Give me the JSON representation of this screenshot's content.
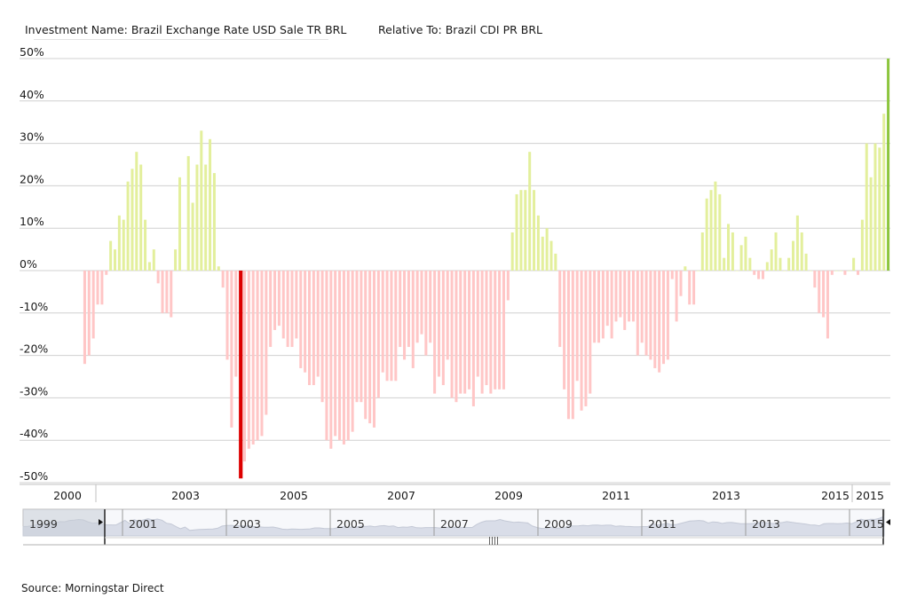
{
  "header": {
    "investment": "Investment Name: Brazil Exchange Rate USD Sale TR BRL",
    "relative": "Relative To: Brazil CDI PR BRL"
  },
  "source": "Source: Morningstar Direct",
  "colors": {
    "positive": "#e3ef9c",
    "negative": "#ffc6c6",
    "max_highlight": "#8dc63f",
    "min_highlight": "#dd0000",
    "grid": "#d0d0d0",
    "navigator_fill": "#d9dde8"
  },
  "chart_data": {
    "type": "bar",
    "title": "",
    "xlabel": "",
    "ylabel": "",
    "ylim": [
      -50,
      50
    ],
    "y_ticks": [
      "50%",
      "40%",
      "30%",
      "20%",
      "10%",
      "0%",
      "-10%",
      "-20%",
      "-30%",
      "-40%",
      "-50%"
    ],
    "x_ticks": [
      "2000",
      "2003",
      "2005",
      "2007",
      "2009",
      "2011",
      "2013",
      "2015",
      "2015"
    ],
    "x_start": "2000-09",
    "frequency": "monthly",
    "grid": true,
    "legend": "none",
    "series": [
      {
        "values": [
          -22,
          -20,
          -16,
          -8,
          -8,
          -1,
          7,
          5,
          13,
          12,
          21,
          24,
          28,
          25,
          12,
          2,
          5,
          -3,
          -10,
          -10,
          -11,
          5,
          22,
          0,
          27,
          16,
          25,
          33,
          25,
          31,
          23,
          1,
          -4,
          -21,
          -37,
          -25,
          -49,
          -45,
          -42,
          -41,
          -40,
          -39,
          -34,
          -18,
          -14,
          -13,
          -16,
          -18,
          -18,
          -16,
          -23,
          -24,
          -27,
          -27,
          -25,
          -31,
          -40,
          -42,
          -39,
          -40,
          -41,
          -40,
          -38,
          -31,
          -31,
          -35,
          -36,
          -37,
          -30,
          -24,
          -26,
          -26,
          -26,
          -18,
          -21,
          -18,
          -23,
          -17,
          -15,
          -20,
          -17,
          -29,
          -25,
          -27,
          -21,
          -30,
          -31,
          -29,
          -29,
          -28,
          -32,
          -25,
          -29,
          -27,
          -29,
          -28,
          -28,
          -28,
          -7,
          9,
          18,
          19,
          19,
          28,
          19,
          13,
          8,
          10,
          7,
          4,
          -18,
          -28,
          -35,
          -35,
          -26,
          -33,
          -32,
          -29,
          -17,
          -17,
          -16,
          -13,
          -16,
          -12,
          -11,
          -14,
          -12,
          -12,
          -20,
          -17,
          -20,
          -21,
          -23,
          -24,
          -22,
          -21,
          -2,
          -12,
          -6,
          1,
          -8,
          -8,
          0,
          9,
          17,
          19,
          21,
          18,
          3,
          11,
          9,
          0,
          6,
          8,
          3,
          -1,
          -2,
          -2,
          2,
          5,
          9,
          3,
          0,
          3,
          7,
          13,
          9,
          4,
          0,
          -4,
          -10,
          -11,
          -16,
          -1,
          0,
          0,
          -1,
          0,
          3,
          -1,
          12,
          30,
          22,
          30,
          29,
          37,
          50
        ]
      }
    ]
  },
  "navigator": {
    "labels": [
      "1999",
      "2001",
      "2003",
      "2005",
      "2007",
      "2009",
      "2011",
      "2013",
      "2015"
    ],
    "grip": "||||"
  }
}
